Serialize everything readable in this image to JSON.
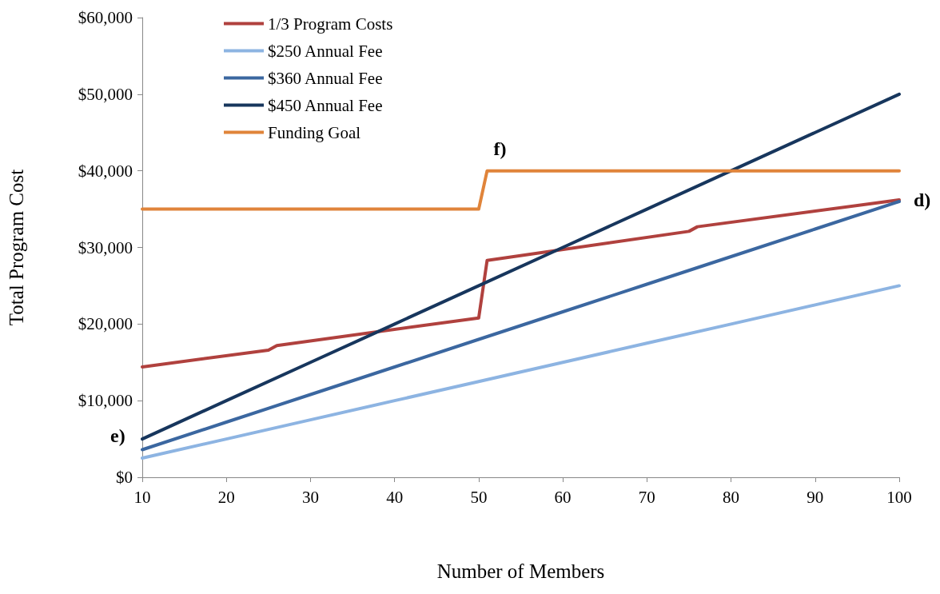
{
  "chart_data": {
    "type": "line",
    "xlabel": "Number of Members",
    "ylabel": "Total Program Cost",
    "xlim": [
      10,
      100
    ],
    "xticks": [
      10,
      20,
      30,
      40,
      50,
      60,
      70,
      80,
      90,
      100
    ],
    "ylim": [
      0,
      60000
    ],
    "yticks": [
      {
        "value": 0,
        "label": "$0"
      },
      {
        "value": 10000,
        "label": "$10,000"
      },
      {
        "value": 20000,
        "label": "$20,000"
      },
      {
        "value": 30000,
        "label": "$30,000"
      },
      {
        "value": 40000,
        "label": "$40,000"
      },
      {
        "value": 50000,
        "label": "$50,000"
      },
      {
        "value": 60000,
        "label": "$60,000"
      }
    ],
    "grid": false,
    "legend": "top left",
    "marker": "none",
    "line_style": "solid",
    "series": [
      {
        "name": "1/3 Program Costs",
        "color": "#b0413e",
        "x": [
          10,
          25,
          26,
          50,
          51,
          75,
          76,
          100
        ],
        "values": [
          14400,
          16600,
          17200,
          20800,
          28300,
          32100,
          32700,
          36200
        ]
      },
      {
        "name": "$250 Annual Fee",
        "color": "#8db4e2",
        "x": [
          10,
          20,
          30,
          40,
          50,
          60,
          70,
          80,
          90,
          100
        ],
        "values": [
          2500,
          5000,
          7500,
          10000,
          12500,
          15000,
          17500,
          20000,
          22500,
          25000
        ]
      },
      {
        "name": "$360 Annual Fee",
        "color": "#3b67a0",
        "x": [
          10,
          20,
          30,
          40,
          50,
          60,
          70,
          80,
          90,
          100
        ],
        "values": [
          3600,
          7200,
          10800,
          14400,
          18000,
          21600,
          25200,
          28800,
          32400,
          36000
        ]
      },
      {
        "name": "$450 Annual Fee",
        "color": "#17365d",
        "x": [
          10,
          20,
          30,
          40,
          50,
          60,
          70,
          80,
          90,
          100
        ],
        "values": [
          5000,
          10000,
          15000,
          20000,
          25000,
          30000,
          35000,
          40000,
          45000,
          50000
        ]
      },
      {
        "name": "Funding Goal",
        "color": "#e0843a",
        "x": [
          10,
          50,
          51,
          100
        ],
        "values": [
          35000,
          35000,
          40000,
          40000
        ]
      }
    ],
    "annotations": [
      {
        "text": "d)",
        "x": 100,
        "y": 36000
      },
      {
        "text": "e)",
        "x": 10,
        "y": 2500
      },
      {
        "text": "f)",
        "x": 51,
        "y": 40000
      }
    ]
  }
}
